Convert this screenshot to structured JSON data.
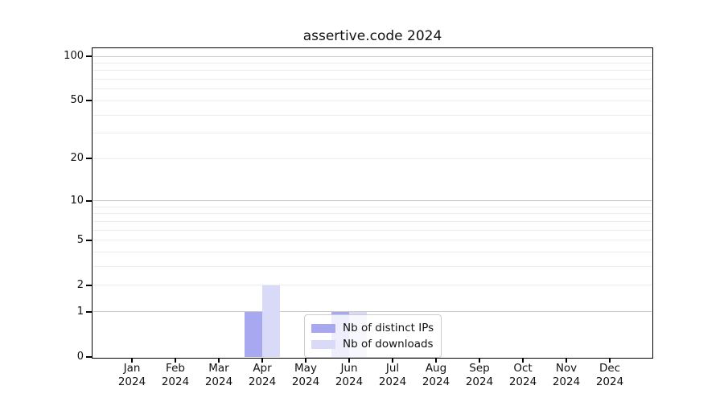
{
  "figure": {
    "title": "assertive.code 2024"
  },
  "chart_data": {
    "type": "bar",
    "title": "assertive.code 2024",
    "x_month_labels": [
      "Jan",
      "Feb",
      "Mar",
      "Apr",
      "May",
      "Jun",
      "Jul",
      "Aug",
      "Sep",
      "Oct",
      "Nov",
      "Dec"
    ],
    "x_year_label": "2024",
    "categories": [
      "Jan 2024",
      "Feb 2024",
      "Mar 2024",
      "Apr 2024",
      "May 2024",
      "Jun 2024",
      "Jul 2024",
      "Aug 2024",
      "Sep 2024",
      "Oct 2024",
      "Nov 2024",
      "Dec 2024"
    ],
    "series": [
      {
        "name": "Nb of distinct IPs",
        "color": "#a8a8f0",
        "values": [
          0,
          0,
          0,
          1,
          0,
          1,
          0,
          0,
          0,
          0,
          0,
          0
        ]
      },
      {
        "name": "Nb of downloads",
        "color": "#d8daf8",
        "values": [
          0,
          0,
          0,
          2,
          0,
          1,
          0,
          0,
          0,
          0,
          0,
          0
        ]
      }
    ],
    "y_scale": "log1p",
    "ylim": [
      0,
      113
    ],
    "y_tick_values": [
      0,
      1,
      2,
      5,
      10,
      20,
      50,
      100
    ],
    "y_major_grid_values": [
      1,
      10,
      100
    ],
    "y_minor_grid_values": [
      2,
      3,
      4,
      5,
      6,
      7,
      8,
      9,
      20,
      30,
      40,
      50,
      60,
      70,
      80,
      90
    ],
    "grid": "horizontal",
    "legend_position": "lower center"
  },
  "colors": {
    "background": "#ffffff",
    "spine": "#000000",
    "major_grid": "#c8c8c8",
    "minor_grid": "#ececec",
    "legend_border": "#cccccc",
    "text": "#111111"
  }
}
